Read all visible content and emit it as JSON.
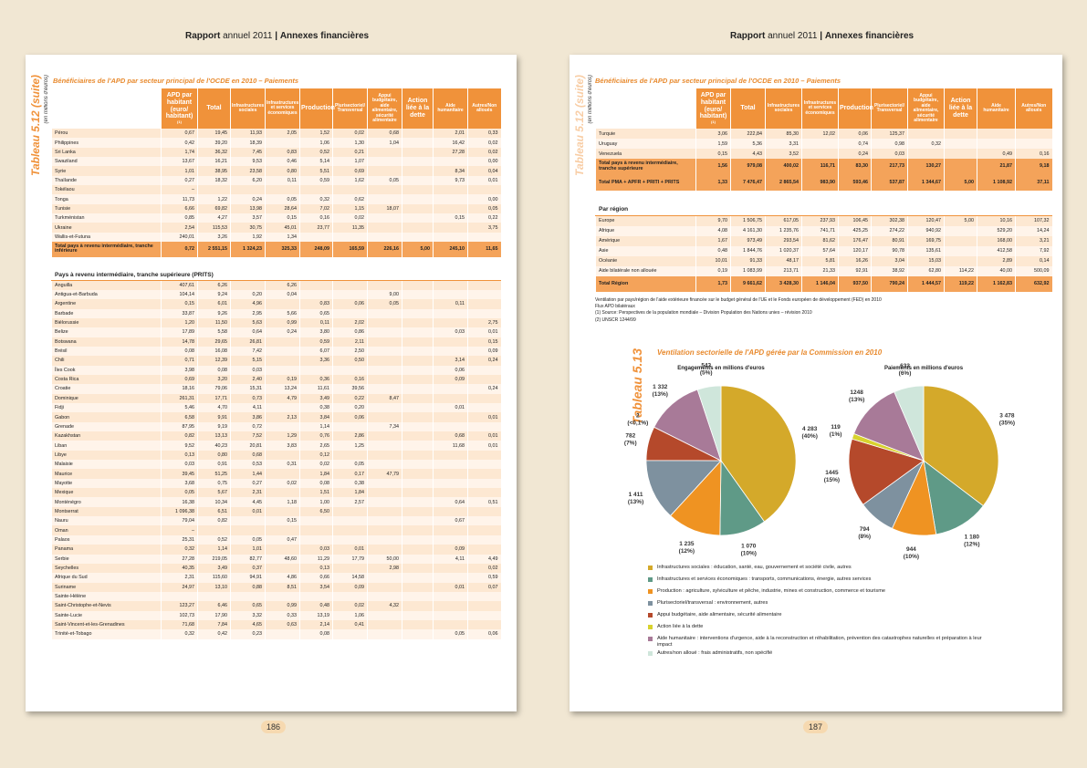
{
  "header": {
    "report": "Rapport",
    "year": "annuel 2011",
    "separator": "|",
    "section": "Annexes financières"
  },
  "table_title": "Bénéficiaires de l'APD par secteur principal de l'OCDE en 2010 – Paiements",
  "unit": "(en millions d'euros)",
  "columns": [
    "APD par habitant (euro/ habitant)",
    "Total",
    "Infrastructures sociales",
    "Infrastructures et services économiques",
    "Production",
    "Plurisectoriel/ Transversal",
    "Appui budgétaire, aide alimentaire, sécurité alimentaire",
    "Action liée à la dette",
    "Aide humanitaire",
    "Autres/Non alloués"
  ],
  "apd_note": "(1)",
  "left": {
    "side_title": "Tableau 5.12 (suite)",
    "page_number": "186",
    "sections": [
      {
        "rows": [
          [
            "Pérou",
            "0,67",
            "19,45",
            "11,93",
            "2,05",
            "1,52",
            "0,02",
            "0,68",
            null,
            "2,01",
            "0,33"
          ],
          [
            "Philippines",
            "0,42",
            "39,20",
            "18,39",
            null,
            "1,06",
            "1,30",
            "1,04",
            null,
            "16,42",
            "0,02"
          ],
          [
            "Sri Lanka",
            "1,74",
            "36,32",
            "7,45",
            "0,83",
            "0,52",
            "0,21",
            null,
            null,
            "27,28",
            "0,02"
          ],
          [
            "Swaziland",
            "13,67",
            "16,21",
            "9,53",
            "0,46",
            "5,14",
            "1,07",
            null,
            null,
            null,
            "0,00"
          ],
          [
            "Syrie",
            "1,01",
            "38,95",
            "23,58",
            "0,80",
            "5,51",
            "0,69",
            null,
            null,
            "8,34",
            "0,04"
          ],
          [
            "Thaïlande",
            "0,27",
            "18,32",
            "6,20",
            "0,11",
            "0,59",
            "1,62",
            "0,05",
            null,
            "9,73",
            "0,01"
          ],
          [
            "Tokélaou",
            "–",
            null,
            null,
            null,
            null,
            null,
            null,
            null,
            null,
            null
          ],
          [
            "Tonga",
            "11,73",
            "1,22",
            "0,24",
            "0,05",
            "0,32",
            "0,62",
            null,
            null,
            null,
            "0,00"
          ],
          [
            "Tunisie",
            "6,66",
            "69,82",
            "13,98",
            "28,64",
            "7,02",
            "1,15",
            "18,07",
            null,
            null,
            "0,05"
          ],
          [
            "Turkménistan",
            "0,85",
            "4,27",
            "3,57",
            "0,15",
            "0,16",
            "0,02",
            null,
            null,
            "0,15",
            "0,22"
          ],
          [
            "Ukraine",
            "2,54",
            "115,53",
            "30,75",
            "45,01",
            "23,77",
            "11,35",
            null,
            null,
            null,
            "3,75"
          ],
          [
            "Wallis-et-Futuna",
            "240,01",
            "3,26",
            "1,92",
            "1,34",
            null,
            null,
            null,
            null,
            null,
            null
          ]
        ],
        "totals": [
          [
            "Total pays à revenu intermédiaire, tranche inférieure",
            "0,72",
            "2 551,15",
            "1 324,23",
            "325,33",
            "248,09",
            "165,59",
            "226,16",
            "5,00",
            "245,10",
            "11,65"
          ]
        ]
      },
      {
        "title": "Pays à revenu intermédiaire, tranche supérieure (PRITS)",
        "rows": [
          [
            "Anguilla",
            "407,61",
            "6,26",
            null,
            "6,26",
            null,
            null,
            null,
            null,
            null,
            null
          ],
          [
            "Antigua-et-Barbuda",
            "104,14",
            "9,24",
            "0,20",
            "0,04",
            null,
            null,
            "9,00",
            null,
            null,
            null
          ],
          [
            "Argentine",
            "0,15",
            "6,01",
            "4,96",
            null,
            "0,83",
            "0,06",
            "0,05",
            null,
            "0,11",
            null
          ],
          [
            "Barbade",
            "33,87",
            "9,26",
            "2,95",
            "5,66",
            "0,65",
            null,
            null,
            null,
            null,
            null
          ],
          [
            "Biélorussie",
            "1,20",
            "11,50",
            "5,63",
            "0,99",
            "0,11",
            "2,02",
            null,
            null,
            null,
            "2,75"
          ],
          [
            "Belize",
            "17,89",
            "5,58",
            "0,64",
            "0,24",
            "3,80",
            "0,86",
            null,
            null,
            "0,03",
            "0,01"
          ],
          [
            "Botswana",
            "14,78",
            "29,65",
            "26,81",
            null,
            "0,59",
            "2,11",
            null,
            null,
            null,
            "0,15"
          ],
          [
            "Brésil",
            "0,08",
            "16,08",
            "7,42",
            null,
            "6,07",
            "2,50",
            null,
            null,
            null,
            "0,09"
          ],
          [
            "Chili",
            "0,71",
            "12,39",
            "5,15",
            null,
            "3,36",
            "0,50",
            null,
            null,
            "3,14",
            "0,24"
          ],
          [
            "Îles Cook",
            "3,98",
            "0,08",
            "0,03",
            null,
            null,
            null,
            null,
            null,
            "0,06",
            null
          ],
          [
            "Costa Rica",
            "0,69",
            "3,20",
            "2,40",
            "0,19",
            "0,36",
            "0,16",
            null,
            null,
            "0,09",
            null
          ],
          [
            "Croatie",
            "18,16",
            "79,06",
            "15,31",
            "13,24",
            "11,61",
            "39,56",
            null,
            null,
            null,
            "0,24"
          ],
          [
            "Dominique",
            "261,31",
            "17,71",
            "0,73",
            "4,79",
            "3,49",
            "0,22",
            "8,47",
            null,
            null,
            null
          ],
          [
            "Fidji",
            "5,46",
            "4,70",
            "4,11",
            null,
            "0,38",
            "0,20",
            null,
            null,
            "0,01",
            null
          ],
          [
            "Gabon",
            "6,58",
            "9,91",
            "3,86",
            "2,13",
            "3,84",
            "0,06",
            null,
            null,
            null,
            "0,01"
          ],
          [
            "Grenade",
            "87,95",
            "9,19",
            "0,72",
            null,
            "1,14",
            null,
            "7,34",
            null,
            null,
            null
          ],
          [
            "Kazakhstan",
            "0,82",
            "13,13",
            "7,52",
            "1,29",
            "0,76",
            "2,86",
            null,
            null,
            "0,68",
            "0,01"
          ],
          [
            "Liban",
            "9,52",
            "40,23",
            "20,81",
            "3,83",
            "2,65",
            "1,25",
            null,
            null,
            "11,68",
            "0,01"
          ],
          [
            "Libye",
            "0,13",
            "0,80",
            "0,68",
            null,
            "0,12",
            null,
            null,
            null,
            null,
            null
          ],
          [
            "Malaisie",
            "0,03",
            "0,91",
            "0,53",
            "0,31",
            "0,02",
            "0,05",
            null,
            null,
            null,
            null
          ],
          [
            "Maurice",
            "39,45",
            "51,25",
            "1,44",
            null,
            "1,84",
            "0,17",
            "47,79",
            null,
            null,
            null
          ],
          [
            "Mayotte",
            "3,68",
            "0,75",
            "0,27",
            "0,02",
            "0,08",
            "0,38",
            null,
            null,
            null,
            null
          ],
          [
            "Mexique",
            "0,05",
            "5,67",
            "2,31",
            null,
            "1,51",
            "1,84",
            null,
            null,
            null,
            null
          ],
          [
            "Monténégro",
            "16,38",
            "10,34",
            "4,45",
            "1,18",
            "1,00",
            "2,57",
            null,
            null,
            "0,64",
            "0,51"
          ],
          [
            "Montserrat",
            "1 096,38",
            "6,51",
            "0,01",
            null,
            "6,50",
            null,
            null,
            null,
            null,
            null
          ],
          [
            "Nauru",
            "79,04",
            "0,82",
            null,
            "0,15",
            null,
            null,
            null,
            null,
            "0,67",
            null
          ],
          [
            "Oman",
            "–",
            null,
            null,
            null,
            null,
            null,
            null,
            null,
            null,
            null
          ],
          [
            "Palaos",
            "25,31",
            "0,52",
            "0,05",
            "0,47",
            null,
            null,
            null,
            null,
            null,
            null
          ],
          [
            "Panama",
            "0,32",
            "1,14",
            "1,01",
            null,
            "0,03",
            "0,01",
            null,
            null,
            "0,09",
            null
          ],
          [
            "Serbie",
            "27,28",
            "219,05",
            "82,77",
            "48,60",
            "11,29",
            "17,79",
            "50,00",
            null,
            "4,11",
            "4,49"
          ],
          [
            "Seychelles",
            "40,35",
            "3,49",
            "0,37",
            null,
            "0,13",
            null,
            "2,98",
            null,
            null,
            "0,02"
          ],
          [
            "Afrique du Sud",
            "2,31",
            "115,60",
            "94,91",
            "4,86",
            "0,66",
            "14,58",
            null,
            null,
            null,
            "0,59"
          ],
          [
            "Suriname",
            "24,97",
            "13,10",
            "0,88",
            "8,51",
            "3,54",
            "0,09",
            null,
            null,
            "0,01",
            "0,07"
          ],
          [
            "Sainte-Hélène",
            null,
            null,
            null,
            null,
            null,
            null,
            null,
            null,
            null,
            null
          ],
          [
            "Saint-Christophe-et-Nevis",
            "123,27",
            "6,46",
            "0,65",
            "0,99",
            "0,48",
            "0,02",
            "4,32",
            null,
            null,
            null
          ],
          [
            "Sainte-Lucie",
            "102,73",
            "17,90",
            "3,32",
            "0,33",
            "13,19",
            "1,06",
            null,
            null,
            null,
            null
          ],
          [
            "Saint-Vincent-et-les-Grenadines",
            "71,68",
            "7,84",
            "4,65",
            "0,63",
            "2,14",
            "0,41",
            null,
            null,
            null,
            null
          ],
          [
            "Trinité-et-Tobago",
            "0,32",
            "0,42",
            "0,23",
            null,
            "0,08",
            null,
            null,
            null,
            "0,05",
            "0,06"
          ]
        ]
      }
    ]
  },
  "right": {
    "side_title": "Tableau 5.12 (suite)",
    "page_number": "187",
    "sections": [
      {
        "rows": [
          [
            "Turquie",
            "3,06",
            "222,84",
            "85,30",
            "12,02",
            "0,06",
            "125,37",
            null,
            null,
            null,
            null
          ],
          [
            "Uruguay",
            "1,59",
            "5,36",
            "3,31",
            null,
            "0,74",
            "0,98",
            "0,32",
            null,
            null,
            null
          ],
          [
            "Venezuela",
            "0,15",
            "4,43",
            "3,52",
            null,
            "0,24",
            "0,03",
            null,
            null,
            "0,49",
            "0,16"
          ]
        ],
        "totals": [
          [
            "Total pays à revenu intermédiaire, tranche supérieure",
            "1,56",
            "979,08",
            "400,02",
            "116,71",
            "83,30",
            "217,73",
            "130,27",
            null,
            "21,87",
            "9,18"
          ],
          [
            "Total PMA + APFR + PRITI + PRITS",
            "1,33",
            "7 476,47",
            "2 865,54",
            "983,90",
            "593,46",
            "537,87",
            "1 344,67",
            "5,00",
            "1 108,92",
            "37,11"
          ]
        ]
      },
      {
        "title": "Par région",
        "rows": [
          [
            "Europe",
            "9,70",
            "1 506,75",
            "617,05",
            "237,93",
            "106,45",
            "302,38",
            "120,47",
            "5,00",
            "10,16",
            "107,32"
          ],
          [
            "Afrique",
            "4,08",
            "4 161,30",
            "1 235,76",
            "741,71",
            "425,25",
            "274,22",
            "940,92",
            null,
            "529,20",
            "14,24"
          ],
          [
            "Amérique",
            "1,67",
            "973,49",
            "293,54",
            "81,62",
            "176,47",
            "80,91",
            "169,75",
            null,
            "168,00",
            "3,21"
          ],
          [
            "Asie",
            "0,48",
            "1 844,76",
            "1 020,37",
            "57,64",
            "120,17",
            "90,78",
            "135,61",
            null,
            "412,58",
            "7,92"
          ],
          [
            "Océanie",
            "10,01",
            "91,33",
            "48,17",
            "5,81",
            "16,26",
            "3,04",
            "15,03",
            null,
            "2,89",
            "0,14"
          ],
          [
            "Aide bilatérale non allouée",
            "0,19",
            "1 083,99",
            "213,71",
            "21,33",
            "92,91",
            "38,92",
            "62,80",
            "114,22",
            "40,00",
            "500,09"
          ]
        ],
        "totals": [
          [
            "Total Région",
            "1,73",
            "9 661,62",
            "3 428,30",
            "1 146,04",
            "937,50",
            "790,24",
            "1 444,57",
            "119,22",
            "1 162,83",
            "632,92"
          ]
        ]
      }
    ],
    "notes": [
      "Ventilation par pays/région de l'aide extérieure financée sur le budget général de l'UE et le Fonds européen de développement (FED) en 2010",
      "Flux APD bilatéraux",
      "(1) Source: Perspectives de la population mondiale – Division Population des Nations unies – révision 2010",
      "(2) UNSCR 1244/99"
    ]
  },
  "pie_section": {
    "side_title": "Tableau 5.13",
    "title": "Ventilation sectorielle de l'APD gérée par la Commission en 2010"
  },
  "legend": [
    "Infrastructures sociales : éducation, santé, eau, gouvernement et société civile, autres",
    "Infrastructures et services économiques : transports, communications, énergie, autres services",
    "Production : agriculture, sylviculture et pêche, industrie, mines et construction, commerce et tourisme",
    "Plurisectoriel/transversal : environnement, autres",
    "Appui budgétaire, aide alimentaire, sécurité alimentaire",
    "Action liée à la dette",
    "Aide humanitaire : interventions d'urgence, aide à la reconstruction et réhabilitation, prévention des catastrophes naturelles et préparation à leur impact",
    "Autres/non alloué : frais administratifs, non spécifié"
  ],
  "chart_data": [
    {
      "type": "pie",
      "title": "Engagements en millions d'euros",
      "values": [
        4283,
        1070,
        1235,
        1411,
        782,
        2,
        1332,
        543
      ],
      "value_labels": [
        "4 283",
        "1 070",
        "1 235",
        "1 411",
        "782",
        "2",
        "1 332",
        "543"
      ],
      "percent_labels": [
        "(40%)",
        "(10%)",
        "(12%)",
        "(13%)",
        "(7%)",
        "(<0,1%)",
        "(13%)",
        "(5%)"
      ],
      "colors": [
        "#d4a92a",
        "#5f9a87",
        "#ef9322",
        "#7e919f",
        "#b5492b",
        "#d8d22e",
        "#a87a98",
        "#cfe6db"
      ]
    },
    {
      "type": "pie",
      "title": "Paiements en millions d'euros",
      "values": [
        3478,
        1180,
        944,
        794,
        1445,
        119,
        1248,
        633
      ],
      "value_labels": [
        "3 478",
        "1 180",
        "944",
        "794",
        "1445",
        "119",
        "1248",
        "633"
      ],
      "percent_labels": [
        "(35%)",
        "(12%)",
        "(10%)",
        "(8%)",
        "(15%)",
        "(1%)",
        "(13%)",
        "(6%)"
      ],
      "colors": [
        "#d4a92a",
        "#5f9a87",
        "#ef9322",
        "#7e919f",
        "#b5492b",
        "#d8d22e",
        "#a87a98",
        "#cfe6db"
      ]
    }
  ]
}
